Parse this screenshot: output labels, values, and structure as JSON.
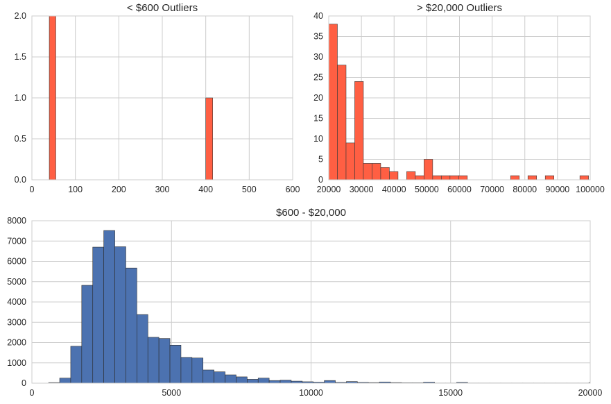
{
  "chart_data": [
    {
      "type": "bar",
      "title": "< $600 Outliers",
      "xlabel": "",
      "ylabel": "",
      "xlim": [
        0,
        600
      ],
      "ylim": [
        0,
        2.0
      ],
      "xticks": [
        "0",
        "100",
        "200",
        "300",
        "400",
        "500",
        "600"
      ],
      "yticks": [
        "0.0",
        "0.5",
        "1.0",
        "1.5",
        "2.0"
      ],
      "grid": true,
      "color": "#ff5f43",
      "bins": [
        {
          "x0": 40,
          "x1": 55,
          "value": 2
        },
        {
          "x0": 400,
          "x1": 416,
          "value": 1
        }
      ]
    },
    {
      "type": "bar",
      "title": "> $20,000 Outliers",
      "xlabel": "",
      "ylabel": "",
      "xlim": [
        20000,
        100000
      ],
      "ylim": [
        0,
        40
      ],
      "xticks": [
        "20000",
        "30000",
        "40000",
        "50000",
        "60000",
        "70000",
        "80000",
        "90000",
        "100000"
      ],
      "yticks": [
        "0",
        "5",
        "10",
        "15",
        "20",
        "25",
        "30",
        "35",
        "40"
      ],
      "grid": true,
      "color": "#ff5f43",
      "bin_start": 20000,
      "bin_width": 2650,
      "values": [
        38,
        28,
        9,
        24,
        4,
        4,
        3,
        2,
        0,
        2,
        1,
        5,
        1,
        1,
        1,
        1,
        0,
        0,
        0,
        0,
        0,
        1,
        0,
        1,
        0,
        1,
        0,
        0,
        0,
        1
      ]
    },
    {
      "type": "bar",
      "title": "$600 - $20,000",
      "xlabel": "",
      "ylabel": "",
      "xlim": [
        0,
        20000
      ],
      "ylim": [
        0,
        8000
      ],
      "xticks": [
        "0",
        "5000",
        "10000",
        "15000",
        "20000"
      ],
      "yticks": [
        "0",
        "1000",
        "2000",
        "3000",
        "4000",
        "5000",
        "6000",
        "7000",
        "8000"
      ],
      "grid": true,
      "color": "#4c72b0",
      "bin_start": 600,
      "bin_width": 395,
      "values": [
        30,
        250,
        1820,
        4820,
        6700,
        7520,
        6720,
        5670,
        3380,
        2260,
        2200,
        1870,
        1270,
        1240,
        650,
        560,
        410,
        310,
        190,
        250,
        130,
        150,
        100,
        70,
        50,
        130,
        40,
        80,
        40,
        30,
        60,
        30,
        20,
        20,
        50,
        10,
        10,
        40,
        10,
        10,
        10,
        10,
        10,
        10,
        10,
        10,
        10,
        10,
        10,
        30
      ]
    }
  ]
}
